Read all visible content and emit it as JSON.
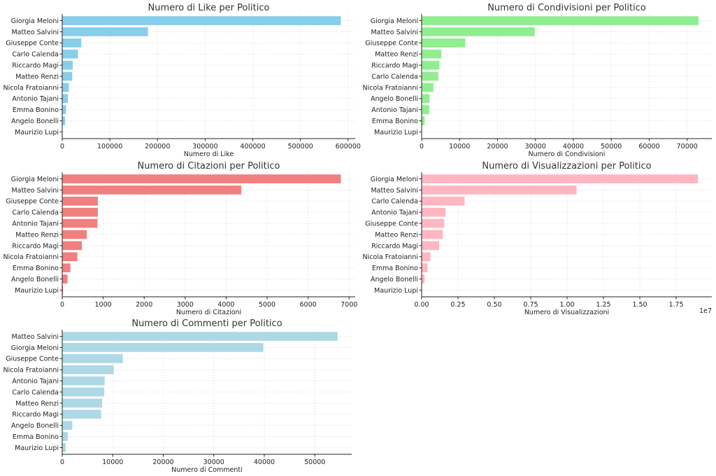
{
  "chart_data": [
    {
      "type": "bar",
      "orientation": "horizontal",
      "title": "Numero di Like per Politico",
      "xlabel": "Numero di Like",
      "ylabel": "",
      "color": "#87ceeb",
      "categories": [
        "Giorgia Meloni",
        "Matteo Salvini",
        "Giuseppe Conte",
        "Carlo Calenda",
        "Riccardo Magi",
        "Matteo Renzi",
        "Nicola Fratoianni",
        "Antonio Tajani",
        "Emma Bonino",
        "Angelo Bonelli",
        "Maurizio Lupi"
      ],
      "values": [
        585000,
        180000,
        40000,
        33000,
        22000,
        21000,
        14000,
        12000,
        8000,
        6000,
        0
      ],
      "xlim": [
        0,
        615000
      ],
      "xticks": [
        0,
        100000,
        200000,
        300000,
        400000,
        500000,
        600000
      ],
      "xtick_labels": [
        "0",
        "100000",
        "200000",
        "300000",
        "400000",
        "500000",
        "600000"
      ],
      "offset_label": "",
      "grid": true
    },
    {
      "type": "bar",
      "orientation": "horizontal",
      "title": "Numero di Condivisioni per Politico",
      "xlabel": "Numero di Condivisioni",
      "ylabel": "",
      "color": "#90ee90",
      "categories": [
        "Giorgia Meloni",
        "Matteo Salvini",
        "Giuseppe Conte",
        "Matteo Renzi",
        "Riccardo Magi",
        "Carlo Calenda",
        "Nicola Fratoianni",
        "Angelo Bonelli",
        "Antonio Tajani",
        "Emma Bonino",
        "Maurizio Lupi"
      ],
      "values": [
        73000,
        29800,
        11500,
        5200,
        4700,
        4400,
        3100,
        2100,
        2000,
        800,
        0
      ],
      "xlim": [
        0,
        76500
      ],
      "xticks": [
        0,
        10000,
        20000,
        30000,
        40000,
        50000,
        60000,
        70000
      ],
      "xtick_labels": [
        "0",
        "10000",
        "20000",
        "30000",
        "40000",
        "50000",
        "60000",
        "70000"
      ],
      "offset_label": "",
      "grid": true
    },
    {
      "type": "bar",
      "orientation": "horizontal",
      "title": "Numero di Citazioni per Politico",
      "xlabel": "Numero di Citazioni",
      "ylabel": "",
      "color": "#f08080",
      "categories": [
        "Giorgia Meloni",
        "Matteo Salvini",
        "Giuseppe Conte",
        "Carlo Calenda",
        "Antonio Tajani",
        "Matteo Renzi",
        "Riccardo Magi",
        "Nicola Fratoianni",
        "Emma Bonino",
        "Angelo Bonelli",
        "Maurizio Lupi"
      ],
      "values": [
        6800,
        4370,
        870,
        870,
        860,
        600,
        480,
        370,
        200,
        130,
        20
      ],
      "xlim": [
        0,
        7150
      ],
      "xticks": [
        0,
        1000,
        2000,
        3000,
        4000,
        5000,
        6000,
        7000
      ],
      "xtick_labels": [
        "0",
        "1000",
        "2000",
        "3000",
        "4000",
        "5000",
        "6000",
        "7000"
      ],
      "offset_label": "",
      "grid": true
    },
    {
      "type": "bar",
      "orientation": "horizontal",
      "title": "Numero di Visualizzazioni per Politico",
      "xlabel": "Numero di Visualizzazioni",
      "ylabel": "",
      "color": "#ffb6c1",
      "categories": [
        "Giorgia Meloni",
        "Matteo Salvini",
        "Carlo Calenda",
        "Antonio Tajani",
        "Giuseppe Conte",
        "Matteo Renzi",
        "Riccardo Magi",
        "Nicola Fratoianni",
        "Emma Bonino",
        "Angelo Bonelli",
        "Maurizio Lupi"
      ],
      "values": [
        1.9,
        1.065,
        0.295,
        0.165,
        0.155,
        0.145,
        0.12,
        0.06,
        0.04,
        0.02,
        0
      ],
      "xlim": [
        0,
        1.995
      ],
      "xticks": [
        0,
        0.25,
        0.5,
        0.75,
        1.0,
        1.25,
        1.5,
        1.75
      ],
      "xtick_labels": [
        "0.00",
        "0.25",
        "0.50",
        "0.75",
        "1.00",
        "1.25",
        "1.50",
        "1.75"
      ],
      "offset_label": "1e7",
      "grid": true
    },
    {
      "type": "bar",
      "orientation": "horizontal",
      "title": "Numero di Commenti per Politico",
      "xlabel": "Numero di Commenti",
      "ylabel": "",
      "color": "#add8e6",
      "categories": [
        "Matteo Salvini",
        "Giorgia Meloni",
        "Giuseppe Conte",
        "Nicola Fratoianni",
        "Antonio Tajani",
        "Carlo Calenda",
        "Matteo Renzi",
        "Riccardo Magi",
        "Angelo Bonelli",
        "Emma Bonino",
        "Maurizio Lupi"
      ],
      "values": [
        54500,
        39800,
        12000,
        10200,
        8400,
        8300,
        7900,
        7700,
        2000,
        1100,
        700
      ],
      "xlim": [
        0,
        57300
      ],
      "xticks": [
        0,
        10000,
        20000,
        30000,
        40000,
        50000
      ],
      "xtick_labels": [
        "0",
        "10000",
        "20000",
        "30000",
        "40000",
        "50000"
      ],
      "offset_label": "",
      "grid": true
    }
  ]
}
